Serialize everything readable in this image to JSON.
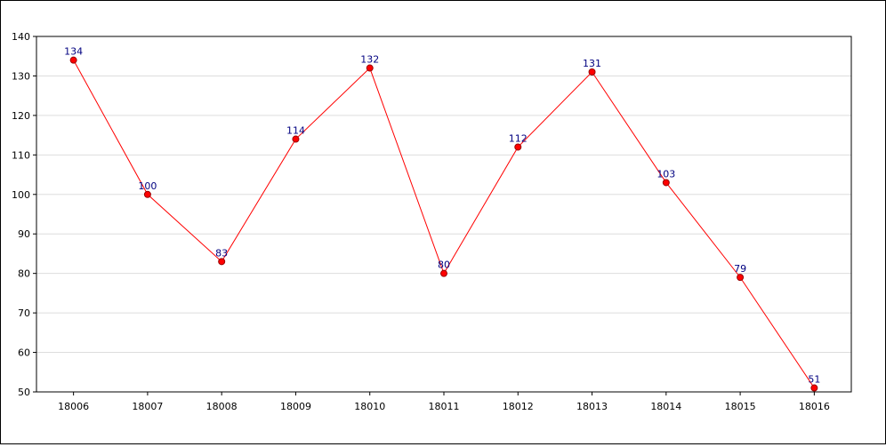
{
  "chart_data": {
    "type": "line",
    "title": "",
    "xlabel": "",
    "ylabel": "",
    "categories": [
      "18006",
      "18007",
      "18008",
      "18009",
      "18010",
      "18011",
      "18012",
      "18013",
      "18014",
      "18015",
      "18016"
    ],
    "series": [
      {
        "values": [
          134,
          100,
          83,
          114,
          132,
          80,
          112,
          131,
          103,
          79,
          51
        ]
      }
    ],
    "ylim": [
      50,
      140
    ],
    "yticks": [
      50,
      60,
      70,
      80,
      90,
      100,
      110,
      120,
      130,
      140
    ],
    "grid": true,
    "legend": "none",
    "colors": {
      "line": "#ff0000",
      "marker_fill": "#ff0000",
      "marker_stroke": "#990000",
      "data_label": "#000080",
      "grid": "#dddddd",
      "axis": "#000000"
    }
  }
}
